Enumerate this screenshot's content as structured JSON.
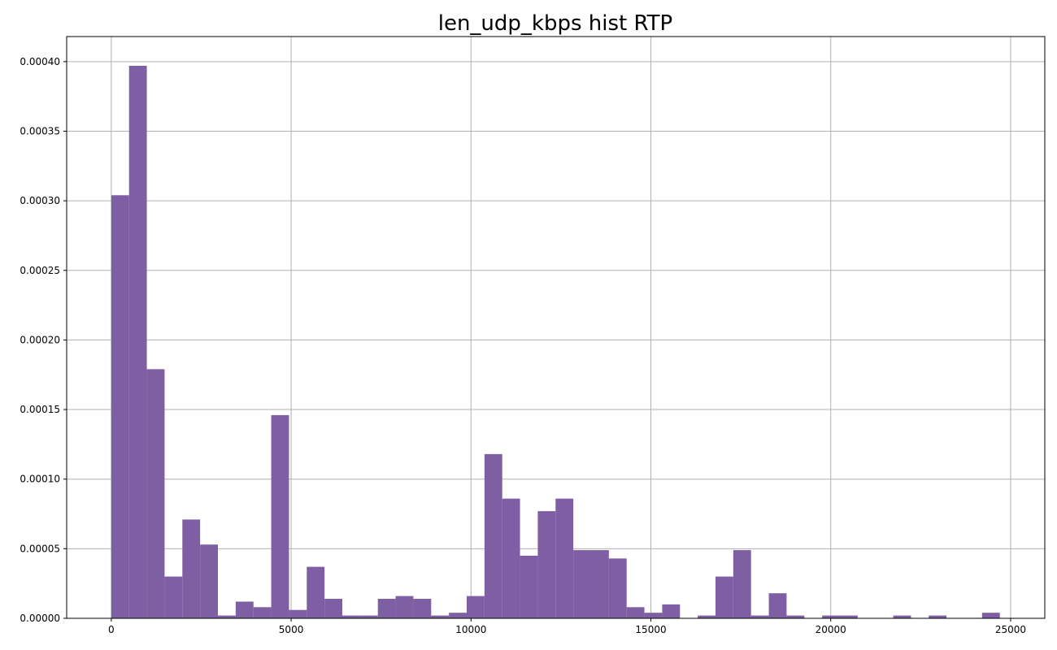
{
  "chart_data": {
    "type": "bar",
    "title": "len_udp_kbps hist RTP",
    "xlabel": "",
    "ylabel": "",
    "xlim": [
      -1240,
      25950
    ],
    "ylim": [
      0,
      0.000418
    ],
    "x_ticks": [
      0,
      5000,
      10000,
      15000,
      20000,
      25000
    ],
    "x_tick_labels": [
      "0",
      "5000",
      "10000",
      "15000",
      "20000",
      "25000"
    ],
    "y_ticks": [
      0,
      5e-05,
      0.0001,
      0.00015,
      0.0002,
      0.00025,
      0.0003,
      0.00035,
      0.0004
    ],
    "y_tick_labels": [
      "0.00000",
      "0.00005",
      "0.00010",
      "0.00015",
      "0.00020",
      "0.00025",
      "0.00030",
      "0.00035",
      "0.00040"
    ],
    "grid": true,
    "bar_color": "#7f5fa4",
    "bin_start": 0,
    "bin_width": 494,
    "values": [
      0.000304,
      0.000397,
      0.000179,
      3e-05,
      7.1e-05,
      5.3e-05,
      2e-06,
      1.2e-05,
      8e-06,
      0.000146,
      6e-06,
      3.7e-05,
      1.4e-05,
      2e-06,
      2e-06,
      1.4e-05,
      1.6e-05,
      1.4e-05,
      2e-06,
      4e-06,
      1.6e-05,
      0.000118,
      8.6e-05,
      4.5e-05,
      7.7e-05,
      8.6e-05,
      4.9e-05,
      4.9e-05,
      4.3e-05,
      8e-06,
      4e-06,
      1e-05,
      0.0,
      2e-06,
      3e-05,
      4.9e-05,
      2e-06,
      1.8e-05,
      2e-06,
      0.0,
      2e-06,
      2e-06,
      0.0,
      0.0,
      2e-06,
      0.0,
      2e-06,
      0.0,
      0.0,
      4e-06
    ]
  }
}
